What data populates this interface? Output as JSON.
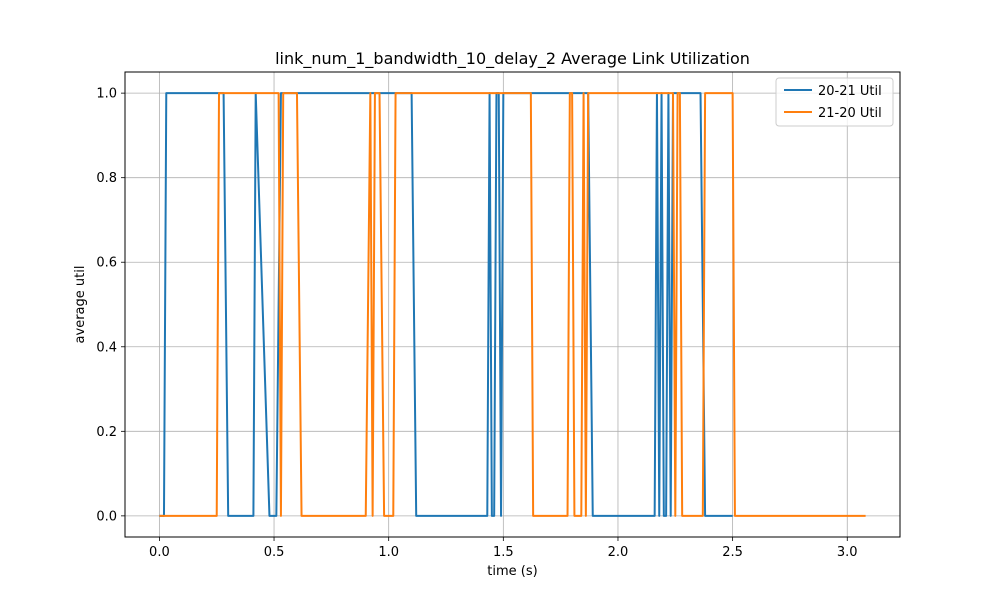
{
  "chart_data": {
    "type": "line",
    "title": "link_num_1_bandwidth_10_delay_2 Average Link Utilization",
    "xlabel": "time (s)",
    "ylabel": "average util",
    "xlim": [
      -0.15,
      3.23
    ],
    "ylim": [
      -0.05,
      1.05
    ],
    "x_ticks": [
      0.0,
      0.5,
      1.0,
      1.5,
      2.0,
      2.5,
      3.0
    ],
    "x_tick_labels": [
      "0.0",
      "0.5",
      "1.0",
      "1.5",
      "2.0",
      "2.5",
      "3.0"
    ],
    "y_ticks": [
      0.0,
      0.2,
      0.4,
      0.6,
      0.8,
      1.0
    ],
    "y_tick_labels": [
      "0.0",
      "0.2",
      "0.4",
      "0.6",
      "0.8",
      "1.0"
    ],
    "grid": true,
    "legend_position": "upper right",
    "series": [
      {
        "name": "20-21 Util",
        "color": "#1f77b4",
        "points": [
          [
            0.0,
            0
          ],
          [
            0.02,
            0
          ],
          [
            0.03,
            1
          ],
          [
            0.28,
            1
          ],
          [
            0.3,
            0
          ],
          [
            0.41,
            0
          ],
          [
            0.42,
            1
          ],
          [
            0.48,
            0
          ],
          [
            0.51,
            0
          ],
          [
            0.53,
            1
          ],
          [
            1.1,
            1
          ],
          [
            1.12,
            0
          ],
          [
            1.43,
            0
          ],
          [
            1.44,
            1
          ],
          [
            1.45,
            0
          ],
          [
            1.46,
            0
          ],
          [
            1.47,
            1
          ],
          [
            1.48,
            1
          ],
          [
            1.49,
            0
          ],
          [
            1.5,
            1
          ],
          [
            1.87,
            1
          ],
          [
            1.89,
            0
          ],
          [
            2.16,
            0
          ],
          [
            2.17,
            1
          ],
          [
            2.18,
            0
          ],
          [
            2.19,
            1
          ],
          [
            2.2,
            0
          ],
          [
            2.21,
            0
          ],
          [
            2.22,
            1
          ],
          [
            2.23,
            0
          ],
          [
            2.24,
            1
          ],
          [
            2.36,
            1
          ],
          [
            2.38,
            0
          ],
          [
            2.5,
            0
          ]
        ]
      },
      {
        "name": "21-20 Util",
        "color": "#ff7f0e",
        "points": [
          [
            0.0,
            0
          ],
          [
            0.25,
            0
          ],
          [
            0.26,
            1
          ],
          [
            0.52,
            1
          ],
          [
            0.53,
            0
          ],
          [
            0.54,
            1
          ],
          [
            0.6,
            1
          ],
          [
            0.62,
            0
          ],
          [
            0.9,
            0
          ],
          [
            0.92,
            1
          ],
          [
            0.93,
            0
          ],
          [
            0.94,
            1
          ],
          [
            0.96,
            1
          ],
          [
            0.98,
            0
          ],
          [
            1.02,
            0
          ],
          [
            1.03,
            1
          ],
          [
            1.62,
            1
          ],
          [
            1.63,
            0
          ],
          [
            1.78,
            0
          ],
          [
            1.79,
            1
          ],
          [
            1.8,
            1
          ],
          [
            1.81,
            0
          ],
          [
            1.84,
            0
          ],
          [
            1.85,
            1
          ],
          [
            1.86,
            0
          ],
          [
            1.87,
            1
          ],
          [
            2.24,
            1
          ],
          [
            2.25,
            0
          ],
          [
            2.26,
            1
          ],
          [
            2.27,
            1
          ],
          [
            2.28,
            0
          ],
          [
            2.37,
            0
          ],
          [
            2.38,
            1
          ],
          [
            2.5,
            1
          ],
          [
            2.51,
            0
          ],
          [
            3.08,
            0
          ]
        ]
      }
    ]
  }
}
